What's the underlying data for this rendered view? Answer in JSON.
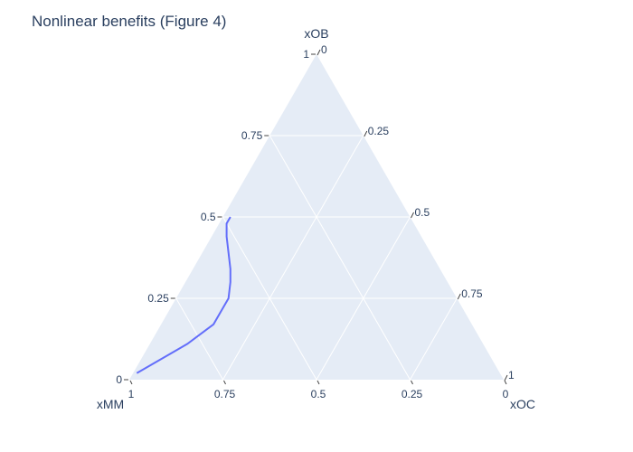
{
  "chart_data": {
    "type": "ternary-line",
    "title": "Nonlinear benefits (Figure 4)",
    "axes": {
      "a": {
        "title": "xOB",
        "ticks": [
          "0",
          "0.25",
          "0.5",
          "0.75",
          "1"
        ]
      },
      "b": {
        "title": "xMM",
        "ticks": [
          "0",
          "0.25",
          "0.5",
          "0.75",
          "1"
        ]
      },
      "c": {
        "title": "xOC",
        "ticks": [
          "0",
          "0.25",
          "0.5",
          "0.75",
          "1"
        ]
      },
      "range": [
        0,
        1
      ]
    },
    "grid": true,
    "colors": {
      "background": "#e5ecf6",
      "grid": "#ffffff",
      "line": "#636efa",
      "text": "#2a3f5f"
    },
    "series": [
      {
        "points": [
          {
            "xOB": 0.02,
            "xMM": 0.97,
            "xOC": 0.01
          },
          {
            "xOB": 0.05,
            "xMM": 0.91,
            "xOC": 0.04
          },
          {
            "xOB": 0.08,
            "xMM": 0.85,
            "xOC": 0.07
          },
          {
            "xOB": 0.11,
            "xMM": 0.79,
            "xOC": 0.1
          },
          {
            "xOB": 0.14,
            "xMM": 0.74,
            "xOC": 0.12
          },
          {
            "xOB": 0.17,
            "xMM": 0.69,
            "xOC": 0.14
          },
          {
            "xOB": 0.21,
            "xMM": 0.65,
            "xOC": 0.14
          },
          {
            "xOB": 0.25,
            "xMM": 0.61,
            "xOC": 0.14
          },
          {
            "xOB": 0.3,
            "xMM": 0.58,
            "xOC": 0.12
          },
          {
            "xOB": 0.34,
            "xMM": 0.56,
            "xOC": 0.1
          },
          {
            "xOB": 0.39,
            "xMM": 0.54,
            "xOC": 0.07
          },
          {
            "xOB": 0.44,
            "xMM": 0.52,
            "xOC": 0.04
          },
          {
            "xOB": 0.48,
            "xMM": 0.5,
            "xOC": 0.02
          },
          {
            "xOB": 0.5,
            "xMM": 0.48,
            "xOC": 0.02
          }
        ]
      }
    ]
  }
}
